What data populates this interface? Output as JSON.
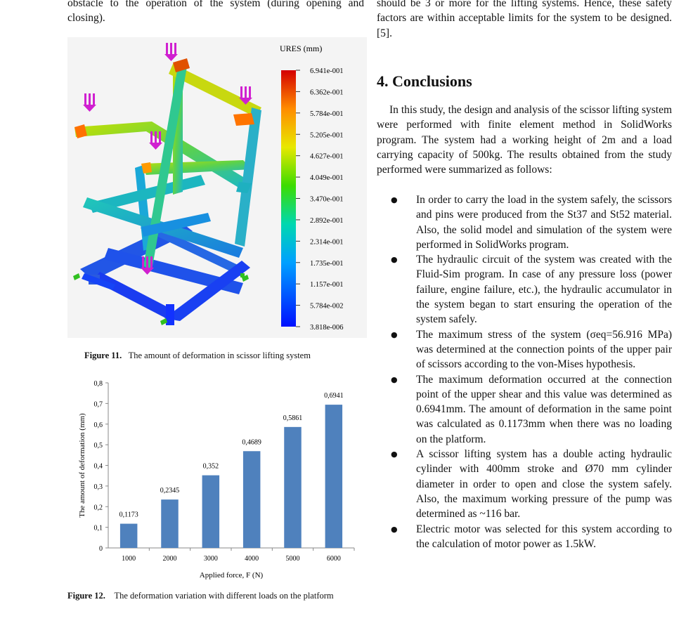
{
  "left_top_text": "obstacle to the operation of the system (during opening and closing).",
  "right_top_text": "should be 3 or more for the lifting systems. Hence, these safety factors are within acceptable limits for the system to be designed. [5].",
  "conclusions": {
    "heading": "4. Conclusions",
    "intro": "In this study, the design and analysis of the scissor lifting system were performed with finite element method in SolidWorks program. The system had a working height of 2m and a load carrying capacity of 500kg. The results obtained from the study performed were summarized as follows:",
    "bullets": [
      "In order to carry the load in the system safely, the scissors and pins were produced from the St37 and St52 material. Also, the solid model and simulation of the system were performed in SolidWorks program.",
      "The hydraulic circuit of the system was created with the Fluid-Sim program. In case of any pressure loss (power failure, engine failure, etc.), the hydraulic accumulator in the system began to start ensuring the operation of the system safely.",
      "The maximum stress of the system (σeq=56.916 MPa) was determined at the connection points of the upper pair of scissors according to the von-Mises hypothesis.",
      "The maximum deformation occurred at the connection point of the upper shear and this value was determined as 0.6941mm. The amount of deformation in the same point was calculated as 0.1173mm when there was no loading on the platform.",
      "A scissor lifting system has a double acting hydraulic cylinder with 400mm stroke and Ø70 mm cylinder diameter in order to open and close the system safely. Also, the maximum working pressure of the pump was determined as ~116 bar.",
      "Electric motor was selected for this system according to the calculation of motor power as 1.5kW."
    ]
  },
  "figure11": {
    "legend_title": "URES (mm)",
    "legend_values": [
      "6.941e-001",
      "6.362e-001",
      "5.784e-001",
      "5.205e-001",
      "4.627e-001",
      "4.049e-001",
      "3.470e-001",
      "2.892e-001",
      "2.314e-001",
      "1.735e-001",
      "1.157e-001",
      "5.784e-002",
      "3.818e-006"
    ],
    "caption_label": "Figure 11.",
    "caption_text": "The amount of deformation in scissor lifting system"
  },
  "figure12": {
    "caption_label": "Figure 12.",
    "caption_text": "The deformation variation with different loads on the platform"
  },
  "chart_data": {
    "type": "bar",
    "categories": [
      "1000",
      "2000",
      "3000",
      "4000",
      "5000",
      "6000"
    ],
    "values": [
      0.1173,
      0.2345,
      0.352,
      0.4689,
      0.5861,
      0.6941
    ],
    "value_labels": [
      "0,1173",
      "0,2345",
      "0,352",
      "0,4689",
      "0,5861",
      "0,6941"
    ],
    "yticks": [
      "0",
      "0,1",
      "0,2",
      "0,3",
      "0,4",
      "0,5",
      "0,6",
      "0,7",
      "0,8"
    ],
    "xlabel": "Applied force, F (N)",
    "ylabel": "The amount of deformation (mm)",
    "ylim": [
      0,
      0.8
    ],
    "bar_color": "#4f81bd",
    "grid": false
  }
}
